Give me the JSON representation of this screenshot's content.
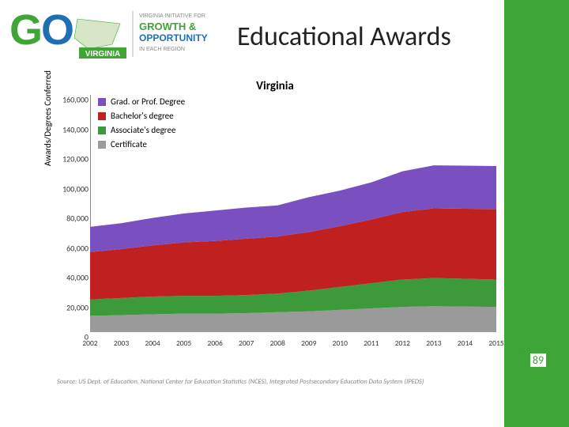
{
  "slide": {
    "title": "Educational Awards",
    "page_number": "89",
    "green_strip_color": "#3fa535"
  },
  "logo": {
    "go_text": "GO",
    "go_color_g": "#3fa535",
    "go_color_o": "#1f6fb5",
    "state_word": "VIRGINIA",
    "tagline_top": "VIRGINIA INITIATIVE FOR",
    "tagline_mid1": "GROWTH &",
    "tagline_mid2": "OPPORTUNITY",
    "tagline_bottom": "IN EACH REGION"
  },
  "chart": {
    "type": "area",
    "title": "Virginia",
    "title_fontsize": 15,
    "ylabel": "Awards/Degrees Conferred",
    "background_color": "#ffffff",
    "ylim": [
      0,
      160000
    ],
    "ytick_step": 20000,
    "yticks": [
      "0",
      "20,000",
      "40,000",
      "60,000",
      "80,000",
      "100,000",
      "120,000",
      "140,000",
      "160,000"
    ],
    "years": [
      "2002",
      "2003",
      "2004",
      "2005",
      "2006",
      "2007",
      "2008",
      "2009",
      "2010",
      "2011",
      "2012",
      "2013",
      "2014",
      "2015"
    ],
    "series": [
      {
        "name": "Certificate",
        "color": "#9a9a9a",
        "values": [
          11000,
          11500,
          12000,
          12500,
          12500,
          12800,
          13500,
          14000,
          15000,
          16000,
          17000,
          17500,
          17200,
          17000
        ]
      },
      {
        "name": "Associate's degree",
        "color": "#3d9a3b",
        "values": [
          11000,
          11500,
          12000,
          12000,
          12000,
          12200,
          12500,
          14000,
          15500,
          17000,
          18500,
          19000,
          18800,
          18500
        ]
      },
      {
        "name": "Bachelor's degree",
        "color": "#c0201f",
        "values": [
          32000,
          33000,
          34500,
          36000,
          37000,
          38000,
          38500,
          39500,
          41000,
          43000,
          45500,
          47000,
          47200,
          47500
        ]
      },
      {
        "name": "Grad. or Prof. Degree",
        "color": "#7a4fbf",
        "values": [
          17000,
          17500,
          18500,
          19500,
          20500,
          21000,
          21000,
          23500,
          24000,
          25000,
          27500,
          29000,
          29100,
          29000
        ]
      }
    ],
    "legend_order": [
      "Grad. or Prof. Degree",
      "Bachelor's degree",
      "Associate's degree",
      "Certificate"
    ],
    "source_note": "Source: US Dept. of Education, National Center for Education Statistics (NCES), Integrated Postsecondary Education Data System (IPEDS)"
  }
}
